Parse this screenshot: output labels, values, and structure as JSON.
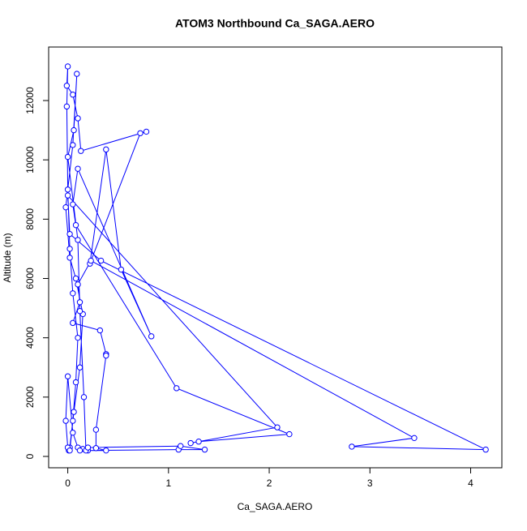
{
  "chart_data": {
    "type": "line",
    "title": "ATOM3 Northbound Ca_SAGA.AERO",
    "x_label": "Ca_SAGA.AERO",
    "y_label": "Altitude (m)",
    "color": "#0000ff",
    "xlim": [
      -0.19,
      4.31
    ],
    "xticks": [
      0,
      1,
      2,
      3,
      4
    ],
    "ylim": [
      -383,
      13805
    ],
    "yticks": [
      0,
      2000,
      4000,
      6000,
      8000,
      10000,
      12000
    ],
    "x": [
      0.01,
      0.02,
      0.05,
      0.08,
      0.1,
      0.05,
      0.02,
      0.0,
      -0.01,
      0.0,
      -0.01,
      0.05,
      0.1,
      0.13,
      0.78,
      0.72,
      0.22,
      0.38,
      0.53,
      0.83,
      0.1,
      0.05,
      0.08,
      1.08,
      2.2,
      1.3,
      1.22,
      2.08,
      0.0,
      0.02,
      0.33,
      4.15,
      2.82,
      3.44,
      0.23,
      0.1,
      0.12,
      0.05,
      0.32,
      0.38,
      0.38,
      0.28,
      0.28,
      0.38,
      0.2,
      0.15,
      0.1,
      0.05,
      0.0,
      -0.02,
      0.0,
      0.02,
      0.06,
      0.12,
      0.15,
      0.08,
      0.02,
      -0.02,
      0.05,
      0.09,
      0.06,
      0.0,
      0.1,
      0.12,
      0.16,
      0.18,
      1.1,
      1.36,
      1.12,
      0.2,
      0.12
    ],
    "values": [
      200,
      300,
      1200,
      2500,
      4000,
      5500,
      7000,
      9000,
      11800,
      13150,
      12500,
      12200,
      11400,
      10300,
      10950,
      10900,
      6500,
      10350,
      6300,
      4050,
      9700,
      8500,
      7800,
      2300,
      750,
      500,
      450,
      980,
      8800,
      7500,
      6600,
      230,
      330,
      620,
      6600,
      5800,
      5200,
      4500,
      4250,
      3450,
      3400,
      900,
      280,
      200,
      200,
      250,
      300,
      800,
      2700,
      1200,
      300,
      200,
      1500,
      3000,
      4800,
      6000,
      6700,
      8400,
      10500,
      12900,
      11000,
      10100,
      7300,
      4900,
      2000,
      200,
      230,
      230,
      350,
      300,
      200
    ]
  }
}
